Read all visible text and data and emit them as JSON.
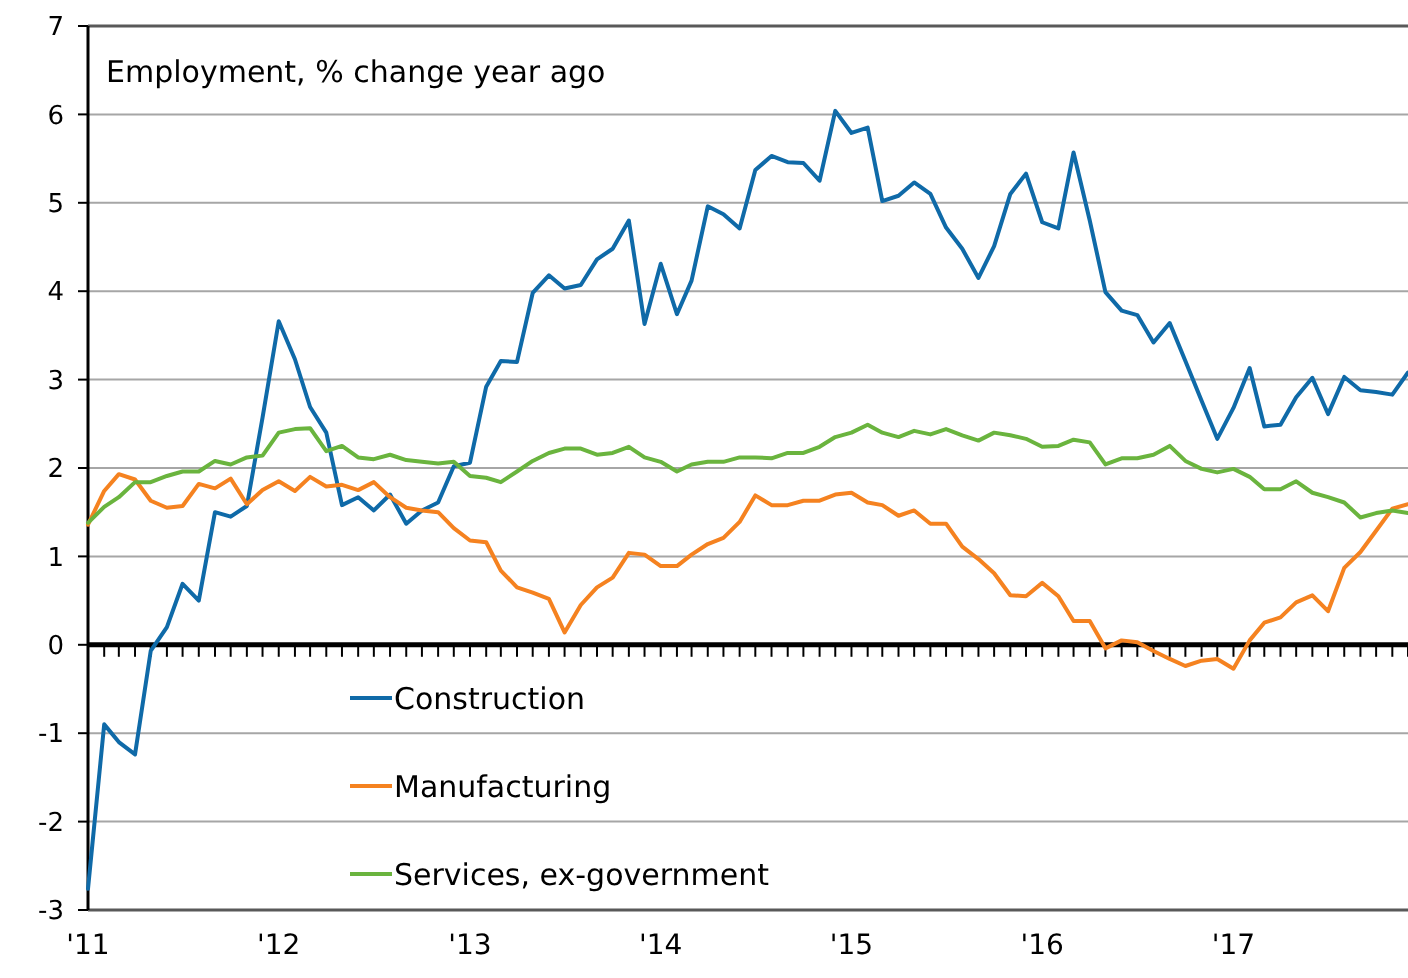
{
  "chart_data": {
    "type": "line",
    "title": "Employment, % change year ago",
    "x": [
      "2011-01",
      "2011-02",
      "2011-03",
      "2011-04",
      "2011-05",
      "2011-06",
      "2011-07",
      "2011-08",
      "2011-09",
      "2011-10",
      "2011-11",
      "2011-12",
      "2012-01",
      "2012-02",
      "2012-03",
      "2012-04",
      "2012-05",
      "2012-06",
      "2012-07",
      "2012-08",
      "2012-09",
      "2012-10",
      "2012-11",
      "2012-12",
      "2013-01",
      "2013-02",
      "2013-03",
      "2013-04",
      "2013-05",
      "2013-06",
      "2013-07",
      "2013-08",
      "2013-09",
      "2013-10",
      "2013-11",
      "2013-12",
      "2014-01",
      "2014-02",
      "2014-03",
      "2014-04",
      "2014-05",
      "2014-06",
      "2014-07",
      "2014-08",
      "2014-09",
      "2014-10",
      "2014-11",
      "2014-12",
      "2015-01",
      "2015-02",
      "2015-03",
      "2015-04",
      "2015-05",
      "2015-06",
      "2015-07",
      "2015-08",
      "2015-09",
      "2015-10",
      "2015-11",
      "2015-12",
      "2016-01",
      "2016-02",
      "2016-03",
      "2016-04",
      "2016-05",
      "2016-06",
      "2016-07",
      "2016-08",
      "2016-09",
      "2016-10",
      "2016-11",
      "2016-12",
      "2017-01",
      "2017-02",
      "2017-03",
      "2017-04",
      "2017-05",
      "2017-06",
      "2017-07",
      "2017-08",
      "2017-09",
      "2017-10",
      "2017-11",
      "2017-12"
    ],
    "xlim": [
      "2011-01",
      "2017-12"
    ],
    "xticks": [
      {
        "value": "2011-01",
        "label": "'11"
      },
      {
        "value": "2011-02",
        "label": null
      },
      {
        "value": "2011-03",
        "label": null
      },
      {
        "value": "2011-04",
        "label": null
      },
      {
        "value": "2011-05",
        "label": null
      },
      {
        "value": "2011-06",
        "label": null
      },
      {
        "value": "2011-07",
        "label": null
      },
      {
        "value": "2011-08",
        "label": null
      },
      {
        "value": "2011-09",
        "label": null
      },
      {
        "value": "2011-10",
        "label": null
      },
      {
        "value": "2011-11",
        "label": null
      },
      {
        "value": "2011-12",
        "label": null
      },
      {
        "value": "2012-01",
        "label": "'12"
      },
      {
        "value": "2012-02",
        "label": null
      },
      {
        "value": "2012-03",
        "label": null
      },
      {
        "value": "2012-04",
        "label": null
      },
      {
        "value": "2012-05",
        "label": null
      },
      {
        "value": "2012-06",
        "label": null
      },
      {
        "value": "2012-07",
        "label": null
      },
      {
        "value": "2012-08",
        "label": null
      },
      {
        "value": "2012-09",
        "label": null
      },
      {
        "value": "2012-10",
        "label": null
      },
      {
        "value": "2012-11",
        "label": null
      },
      {
        "value": "2012-12",
        "label": null
      },
      {
        "value": "2013-01",
        "label": "'13"
      },
      {
        "value": "2013-02",
        "label": null
      },
      {
        "value": "2013-03",
        "label": null
      },
      {
        "value": "2013-04",
        "label": null
      },
      {
        "value": "2013-05",
        "label": null
      },
      {
        "value": "2013-06",
        "label": null
      },
      {
        "value": "2013-07",
        "label": null
      },
      {
        "value": "2013-08",
        "label": null
      },
      {
        "value": "2013-09",
        "label": null
      },
      {
        "value": "2013-10",
        "label": null
      },
      {
        "value": "2013-11",
        "label": null
      },
      {
        "value": "2013-12",
        "label": null
      },
      {
        "value": "2014-01",
        "label": "'14"
      },
      {
        "value": "2014-02",
        "label": null
      },
      {
        "value": "2014-03",
        "label": null
      },
      {
        "value": "2014-04",
        "label": null
      },
      {
        "value": "2014-05",
        "label": null
      },
      {
        "value": "2014-06",
        "label": null
      },
      {
        "value": "2014-07",
        "label": null
      },
      {
        "value": "2014-08",
        "label": null
      },
      {
        "value": "2014-09",
        "label": null
      },
      {
        "value": "2014-10",
        "label": null
      },
      {
        "value": "2014-11",
        "label": null
      },
      {
        "value": "2014-12",
        "label": null
      },
      {
        "value": "2015-01",
        "label": "'15"
      },
      {
        "value": "2015-02",
        "label": null
      },
      {
        "value": "2015-03",
        "label": null
      },
      {
        "value": "2015-04",
        "label": null
      },
      {
        "value": "2015-05",
        "label": null
      },
      {
        "value": "2015-06",
        "label": null
      },
      {
        "value": "2015-07",
        "label": null
      },
      {
        "value": "2015-08",
        "label": null
      },
      {
        "value": "2015-09",
        "label": null
      },
      {
        "value": "2015-10",
        "label": null
      },
      {
        "value": "2015-11",
        "label": null
      },
      {
        "value": "2015-12",
        "label": null
      },
      {
        "value": "2016-01",
        "label": "'16"
      },
      {
        "value": "2016-02",
        "label": null
      },
      {
        "value": "2016-03",
        "label": null
      },
      {
        "value": "2016-04",
        "label": null
      },
      {
        "value": "2016-05",
        "label": null
      },
      {
        "value": "2016-06",
        "label": null
      },
      {
        "value": "2016-07",
        "label": null
      },
      {
        "value": "2016-08",
        "label": null
      },
      {
        "value": "2016-09",
        "label": null
      },
      {
        "value": "2016-10",
        "label": null
      },
      {
        "value": "2016-11",
        "label": null
      },
      {
        "value": "2016-12",
        "label": null
      },
      {
        "value": "2017-01",
        "label": "'17"
      },
      {
        "value": "2017-02",
        "label": null
      },
      {
        "value": "2017-03",
        "label": null
      },
      {
        "value": "2017-04",
        "label": null
      },
      {
        "value": "2017-05",
        "label": null
      },
      {
        "value": "2017-06",
        "label": null
      },
      {
        "value": "2017-07",
        "label": null
      },
      {
        "value": "2017-08",
        "label": null
      },
      {
        "value": "2017-09",
        "label": null
      },
      {
        "value": "2017-10",
        "label": null
      },
      {
        "value": "2017-11",
        "label": null
      },
      {
        "value": "2017-12",
        "label": null
      }
    ],
    "ylim": [
      -3,
      7
    ],
    "yticks": [
      -3,
      -2,
      -1,
      0,
      1,
      2,
      3,
      4,
      5,
      6,
      7
    ],
    "grid": "y",
    "legend": "bottom",
    "series": [
      {
        "name": "Construction",
        "color": "#0f6aa8",
        "values": [
          -2.76,
          -0.9,
          -1.1,
          -1.24,
          -0.07,
          0.2,
          0.69,
          0.5,
          1.5,
          1.45,
          1.57,
          2.57,
          3.66,
          3.23,
          2.69,
          2.4,
          1.58,
          1.67,
          1.52,
          1.7,
          1.37,
          1.52,
          1.61,
          2.02,
          2.06,
          2.92,
          3.21,
          3.2,
          3.98,
          4.18,
          4.03,
          4.07,
          4.36,
          4.48,
          4.8,
          3.63,
          4.31,
          3.74,
          4.12,
          4.96,
          4.87,
          4.71,
          5.37,
          5.53,
          5.46,
          5.45,
          5.25,
          6.04,
          5.79,
          5.85,
          5.02,
          5.08,
          5.23,
          5.1,
          4.72,
          4.48,
          4.15,
          4.51,
          5.1,
          5.33,
          4.78,
          4.71,
          5.57,
          4.8,
          3.99,
          3.78,
          3.73,
          3.42,
          3.64,
          3.21,
          2.76,
          2.33,
          2.68,
          3.13,
          2.47,
          2.49,
          2.8,
          3.02,
          2.61,
          3.03,
          2.88,
          2.86,
          2.83,
          3.08
        ]
      },
      {
        "name": "Manufacturing",
        "color": "#f58220",
        "values": [
          1.36,
          1.74,
          1.93,
          1.87,
          1.63,
          1.55,
          1.57,
          1.82,
          1.77,
          1.88,
          1.59,
          1.75,
          1.85,
          1.74,
          1.9,
          1.79,
          1.81,
          1.75,
          1.84,
          1.67,
          1.55,
          1.52,
          1.5,
          1.32,
          1.18,
          1.16,
          0.84,
          0.65,
          0.59,
          0.52,
          0.14,
          0.45,
          0.65,
          0.76,
          1.04,
          1.02,
          0.89,
          0.89,
          1.02,
          1.14,
          1.21,
          1.39,
          1.69,
          1.58,
          1.58,
          1.63,
          1.63,
          1.7,
          1.72,
          1.61,
          1.58,
          1.46,
          1.52,
          1.37,
          1.37,
          1.11,
          0.97,
          0.81,
          0.56,
          0.55,
          0.7,
          0.55,
          0.27,
          0.27,
          -0.04,
          0.05,
          0.03,
          -0.07,
          -0.16,
          -0.24,
          -0.18,
          -0.16,
          -0.27,
          0.05,
          0.25,
          0.31,
          0.48,
          0.56,
          0.38,
          0.87,
          1.05,
          1.29,
          1.54,
          1.59
        ]
      },
      {
        "name": "Services, ex-government",
        "color": "#6ab43e",
        "values": [
          1.38,
          1.56,
          1.67,
          1.84,
          1.84,
          1.91,
          1.96,
          1.96,
          2.08,
          2.04,
          2.12,
          2.14,
          2.4,
          2.44,
          2.45,
          2.19,
          2.25,
          2.12,
          2.1,
          2.15,
          2.09,
          2.07,
          2.05,
          2.07,
          1.91,
          1.89,
          1.84,
          1.96,
          2.08,
          2.17,
          2.22,
          2.22,
          2.15,
          2.17,
          2.24,
          2.12,
          2.07,
          1.96,
          2.04,
          2.07,
          2.07,
          2.12,
          2.12,
          2.11,
          2.17,
          2.17,
          2.24,
          2.35,
          2.4,
          2.49,
          2.4,
          2.35,
          2.42,
          2.38,
          2.44,
          2.37,
          2.31,
          2.4,
          2.37,
          2.33,
          2.24,
          2.25,
          2.32,
          2.29,
          2.04,
          2.11,
          2.11,
          2.15,
          2.25,
          2.08,
          1.99,
          1.95,
          1.99,
          1.9,
          1.76,
          1.76,
          1.85,
          1.72,
          1.67,
          1.61,
          1.44,
          1.49,
          1.52,
          1.49
        ]
      }
    ]
  }
}
